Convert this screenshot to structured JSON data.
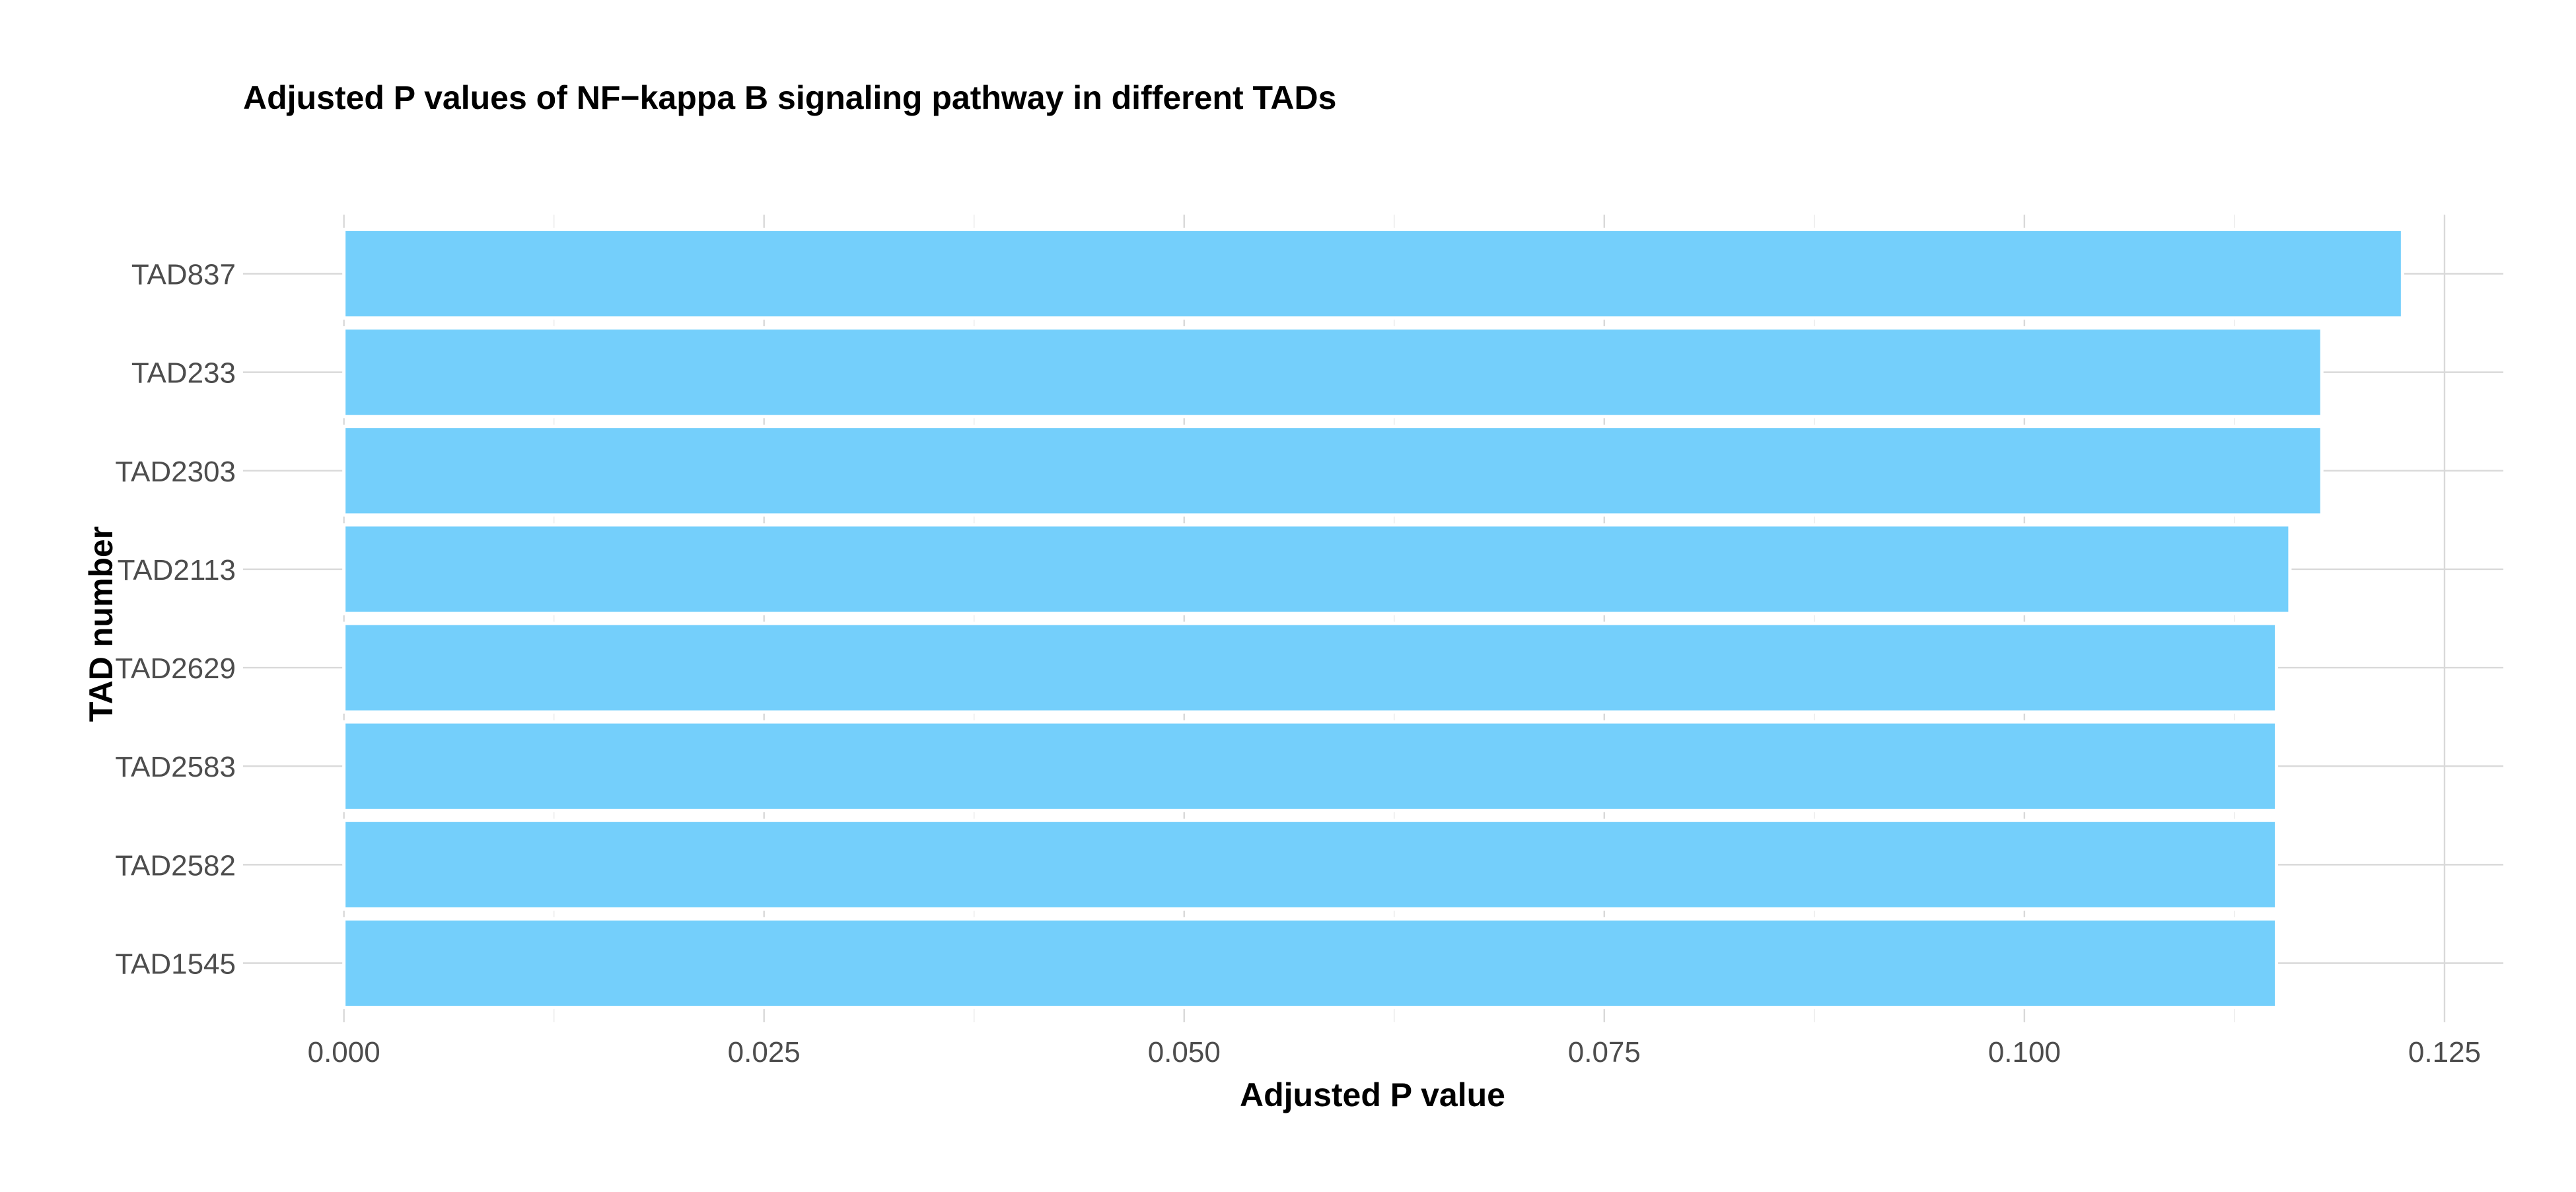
{
  "chart_data": {
    "type": "bar",
    "orientation": "horizontal",
    "title": "Adjusted P values of NF−kappa B signaling pathway in different TADs",
    "xlabel": "Adjusted P value",
    "ylabel": "TAD number",
    "categories": [
      "TAD837",
      "TAD233",
      "TAD2303",
      "TAD2113",
      "TAD2629",
      "TAD2583",
      "TAD2582",
      "TAD1545"
    ],
    "values": [
      0.1225,
      0.1177,
      0.1177,
      0.1158,
      0.115,
      0.115,
      0.115,
      0.115
    ],
    "xlim": [
      -0.006,
      0.1285
    ],
    "x_ticks": [
      "0.000",
      "0.025",
      "0.050",
      "0.075",
      "0.100",
      "0.125"
    ],
    "x_tick_values": [
      0,
      0.025,
      0.05,
      0.075,
      0.1,
      0.125
    ],
    "grid": true,
    "legend": "none",
    "colors": {
      "bar_fill": "#74cffb",
      "bar_outline": "#ffffff",
      "grid": "#d9d9d9"
    }
  }
}
